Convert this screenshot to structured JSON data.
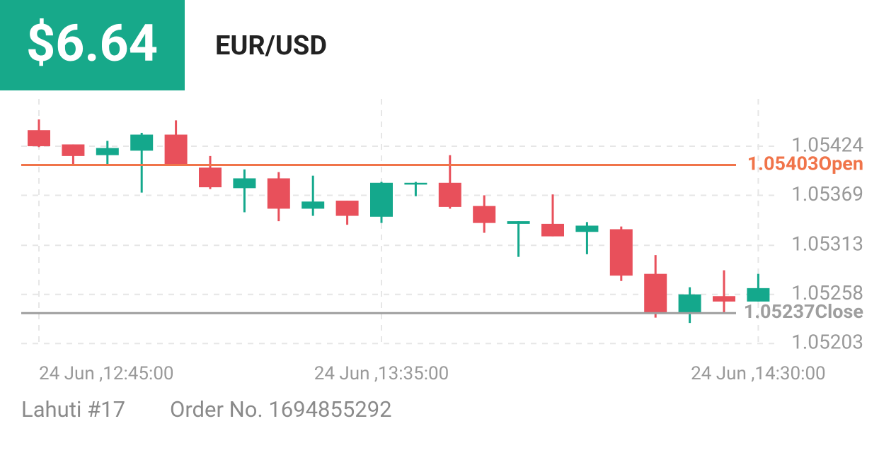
{
  "header": {
    "amount": "$6.64",
    "symbol": "EUR/USD"
  },
  "chart_data": {
    "type": "candlestick",
    "categories": [
      "24 Jun ,12:45:00",
      null,
      null,
      null,
      null,
      null,
      null,
      null,
      null,
      null,
      "24 Jun ,13:35:00",
      null,
      null,
      null,
      null,
      null,
      null,
      null,
      null,
      null,
      null,
      "24 Jun ,14:30:00"
    ],
    "open": [
      1.05442,
      1.05426,
      1.05414,
      1.05419,
      1.05437,
      1.054,
      1.05377,
      1.05388,
      1.05354,
      1.05363,
      1.05345,
      1.05381,
      1.05383,
      1.05357,
      1.05337,
      1.05337,
      1.05328,
      1.05331,
      1.05281,
      1.05238,
      1.05256,
      1.0525
    ],
    "high": [
      1.05454,
      1.05426,
      1.0543,
      1.05439,
      1.05453,
      1.05413,
      1.05398,
      1.05395,
      1.05391,
      1.05363,
      1.05384,
      1.05384,
      1.05414,
      1.05369,
      1.0534,
      1.0537,
      1.05339,
      1.05334,
      1.05302,
      1.05266,
      1.05285,
      1.05281
    ],
    "low": [
      1.05423,
      1.05402,
      1.05403,
      1.05372,
      1.05402,
      1.05376,
      1.0535,
      1.0534,
      1.05346,
      1.05336,
      1.05338,
      1.05368,
      1.05354,
      1.05327,
      1.053,
      1.05323,
      1.05303,
      1.05273,
      1.05232,
      1.05226,
      1.05238,
      1.0525
    ],
    "close": [
      1.05424,
      1.05413,
      1.05422,
      1.05437,
      1.05402,
      1.05378,
      1.05388,
      1.05354,
      1.05362,
      1.05346,
      1.05383,
      1.05383,
      1.05356,
      1.05338,
      1.0534,
      1.05323,
      1.05335,
      1.05279,
      1.05238,
      1.05258,
      1.0525,
      1.05265
    ],
    "up_color": "#14a88c",
    "down_color": "#e8505b",
    "ylim": [
      1.052,
      1.05477
    ],
    "yticks": [
      1.05424,
      1.05369,
      1.05313,
      1.05258,
      1.05203
    ],
    "grid": true,
    "reference_lines": [
      {
        "value": 1.05403,
        "label": "Open",
        "color": "#f0744a"
      },
      {
        "value": 1.05237,
        "label": "Close",
        "color": "#9e9e9e"
      }
    ]
  },
  "footer": {
    "account": "Lahuti #17",
    "order": "Order No. 1694855292"
  }
}
